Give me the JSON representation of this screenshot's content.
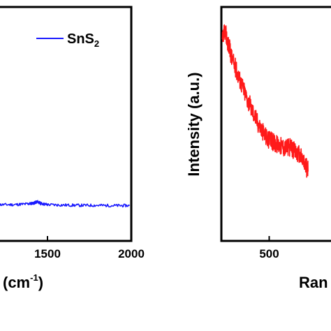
{
  "chart_data": [
    {
      "type": "line",
      "xlabel_visible": "(cm",
      "xlabel_superscript": "-1",
      "xlabel_close": ")",
      "ylabel": "",
      "xlim": [
        1200,
        2000
      ],
      "ylim": [
        0,
        1
      ],
      "x_ticks": [
        {
          "value": 1500,
          "label": "1500"
        },
        {
          "value": 2000,
          "label": "2000"
        }
      ],
      "x_tick_partial": {
        "value": 1200,
        "label": "0"
      },
      "legend": {
        "position": "top-right",
        "label_main": "SnS",
        "label_sub": "2"
      },
      "series": [
        {
          "name": "SnS2",
          "color": "#1a1aff",
          "x": [
            1200,
            1300,
            1380,
            1420,
            1440,
            1460,
            1500,
            1600,
            1700,
            1800,
            1900,
            1990
          ],
          "y": [
            0.155,
            0.155,
            0.158,
            0.162,
            0.168,
            0.16,
            0.155,
            0.153,
            0.152,
            0.152,
            0.151,
            0.151
          ]
        }
      ]
    },
    {
      "type": "line",
      "ylabel": "Intensity (a.u.)",
      "xlabel_visible": "Ran",
      "xlim": [
        230,
        900
      ],
      "ylim": [
        0,
        1
      ],
      "x_ticks": [
        {
          "value": 500,
          "label": "500"
        }
      ],
      "series": [
        {
          "name": "",
          "color": "#ff1a1a",
          "x": [
            235,
            250,
            270,
            290,
            320,
            350,
            380,
            410,
            440,
            470,
            500,
            530,
            560,
            590,
            620,
            650,
            680,
            700,
            720
          ],
          "y": [
            0.85,
            0.9,
            0.84,
            0.78,
            0.72,
            0.66,
            0.6,
            0.55,
            0.5,
            0.46,
            0.43,
            0.42,
            0.41,
            0.4,
            0.4,
            0.38,
            0.36,
            0.33,
            0.3
          ]
        }
      ]
    }
  ]
}
